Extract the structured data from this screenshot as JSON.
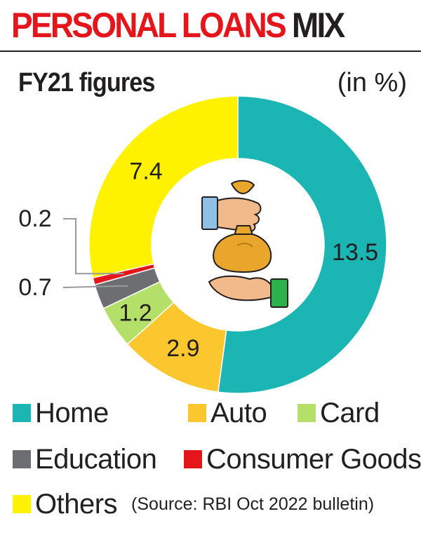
{
  "header": {
    "title_highlight": "PERSONAL LOANS",
    "title_rest": "MIX"
  },
  "subtitle": "FY21 figures",
  "unit": "(in %)",
  "source": "(Source: RBI Oct 2022 bulletin)",
  "chart_data": {
    "type": "pie",
    "style": "donut",
    "title": "PERSONAL LOANS MIX",
    "subtitle": "FY21 figures",
    "unit": "(in %)",
    "legend_position": "bottom",
    "series": [
      {
        "name": "Home",
        "value": 13.5,
        "label": "13.5",
        "color": "#1bb5b3"
      },
      {
        "name": "Auto",
        "value": 2.9,
        "label": "2.9",
        "color": "#fbc62e"
      },
      {
        "name": "Card",
        "value": 1.2,
        "label": "1.2",
        "color": "#b4e06a"
      },
      {
        "name": "Education",
        "value": 0.7,
        "label": "0.7",
        "color": "#6d6e71"
      },
      {
        "name": "Consumer Goods",
        "value": 0.2,
        "label": "0.2",
        "color": "#e4161b"
      },
      {
        "name": "Others",
        "value": 7.4,
        "label": "7.4",
        "color": "#fff200"
      }
    ]
  },
  "center_icon": "hand-money-bag-icon"
}
